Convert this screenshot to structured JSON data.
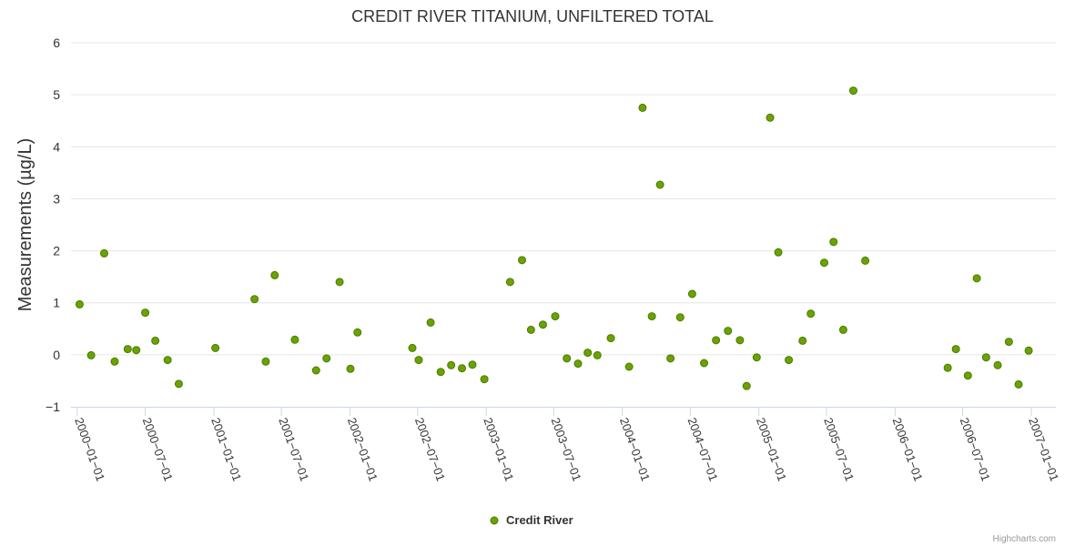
{
  "chart_data": {
    "type": "scatter",
    "title": "CREDIT RIVER TITANIUM, UNFILTERED TOTAL",
    "ylabel": "Measurements (µg/L)",
    "xlabel": "",
    "ylim": [
      -1,
      6
    ],
    "yticks": [
      -1,
      0,
      1,
      2,
      3,
      4,
      5,
      6
    ],
    "xlim": [
      "1999-12-15",
      "2007-03-08"
    ],
    "xticks": [
      "2000-01-01",
      "2000-07-01",
      "2001-01-01",
      "2001-07-01",
      "2002-01-01",
      "2002-07-01",
      "2003-01-01",
      "2003-07-01",
      "2004-01-01",
      "2004-07-01",
      "2005-01-01",
      "2005-07-01",
      "2006-01-01",
      "2006-07-01",
      "2007-01-01"
    ],
    "grid": true,
    "legend_position": "bottom-center",
    "series": [
      {
        "name": "Credit River",
        "color": "#6aa300",
        "points": [
          [
            "2000-01-07",
            0.97
          ],
          [
            "2000-02-07",
            -0.01
          ],
          [
            "2000-03-13",
            1.95
          ],
          [
            "2000-04-10",
            -0.13
          ],
          [
            "2000-05-15",
            0.11
          ],
          [
            "2000-06-07",
            0.09
          ],
          [
            "2000-07-01",
            0.81
          ],
          [
            "2000-07-28",
            0.27
          ],
          [
            "2000-08-30",
            -0.1
          ],
          [
            "2000-09-29",
            -0.56
          ],
          [
            "2001-01-05",
            0.13
          ],
          [
            "2001-04-20",
            1.07
          ],
          [
            "2001-05-20",
            -0.13
          ],
          [
            "2001-06-13",
            1.53
          ],
          [
            "2001-08-06",
            0.29
          ],
          [
            "2001-10-02",
            -0.3
          ],
          [
            "2001-10-30",
            -0.07
          ],
          [
            "2001-12-04",
            1.4
          ],
          [
            "2002-01-02",
            -0.27
          ],
          [
            "2002-01-21",
            0.43
          ],
          [
            "2002-06-17",
            0.13
          ],
          [
            "2002-07-04",
            -0.1
          ],
          [
            "2002-08-05",
            0.62
          ],
          [
            "2002-09-01",
            -0.33
          ],
          [
            "2002-09-29",
            -0.2
          ],
          [
            "2002-10-28",
            -0.26
          ],
          [
            "2002-11-25",
            -0.19
          ],
          [
            "2002-12-27",
            -0.47
          ],
          [
            "2003-03-06",
            1.4
          ],
          [
            "2003-04-07",
            1.82
          ],
          [
            "2003-05-01",
            0.48
          ],
          [
            "2003-06-02",
            0.58
          ],
          [
            "2003-07-05",
            0.74
          ],
          [
            "2003-08-05",
            -0.07
          ],
          [
            "2003-09-04",
            -0.17
          ],
          [
            "2003-09-30",
            0.04
          ],
          [
            "2003-10-26",
            -0.01
          ],
          [
            "2003-12-01",
            0.32
          ],
          [
            "2004-01-19",
            -0.23
          ],
          [
            "2004-02-24",
            4.75
          ],
          [
            "2004-03-20",
            0.74
          ],
          [
            "2004-04-11",
            3.27
          ],
          [
            "2004-05-09",
            -0.07
          ],
          [
            "2004-06-04",
            0.72
          ],
          [
            "2004-07-06",
            1.17
          ],
          [
            "2004-08-07",
            -0.16
          ],
          [
            "2004-09-08",
            0.28
          ],
          [
            "2004-10-10",
            0.46
          ],
          [
            "2004-11-11",
            0.28
          ],
          [
            "2004-11-29",
            -0.6
          ],
          [
            "2004-12-26",
            -0.05
          ],
          [
            "2005-01-31",
            4.56
          ],
          [
            "2005-02-22",
            1.97
          ],
          [
            "2005-03-22",
            -0.1
          ],
          [
            "2005-04-28",
            0.27
          ],
          [
            "2005-05-20",
            0.79
          ],
          [
            "2005-06-25",
            1.77
          ],
          [
            "2005-07-20",
            2.17
          ],
          [
            "2005-08-15",
            0.48
          ],
          [
            "2005-09-11",
            5.08
          ],
          [
            "2005-10-13",
            1.81
          ],
          [
            "2006-05-22",
            -0.25
          ],
          [
            "2006-06-13",
            0.11
          ],
          [
            "2006-07-15",
            -0.4
          ],
          [
            "2006-08-08",
            1.47
          ],
          [
            "2006-09-02",
            -0.05
          ],
          [
            "2006-10-03",
            -0.2
          ],
          [
            "2006-11-02",
            0.25
          ],
          [
            "2006-11-28",
            -0.57
          ],
          [
            "2006-12-25",
            0.08
          ]
        ]
      }
    ]
  },
  "branding": {
    "credit": "Highcharts.com"
  }
}
